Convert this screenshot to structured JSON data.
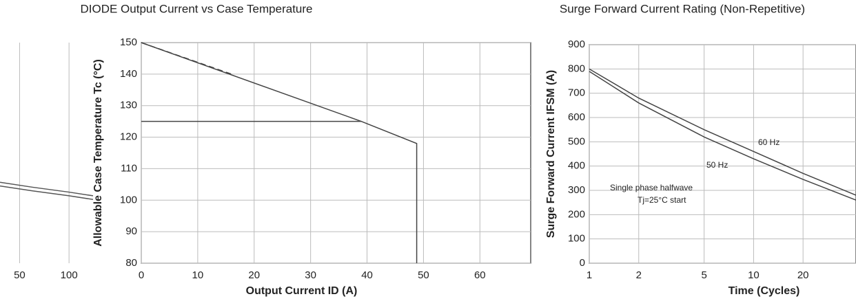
{
  "chart_data": [
    {
      "type": "line",
      "xscale": "log",
      "xlim": [
        38,
        140
      ],
      "ylim": [
        0,
        900
      ],
      "xticks": [
        50,
        100
      ],
      "grid": true,
      "series": [
        {
          "color": "#555",
          "x": [
            38,
            60,
            100,
            140
          ],
          "values": [
            330,
            310,
            290,
            275
          ]
        },
        {
          "color": "#555",
          "x": [
            38,
            60,
            100,
            140
          ],
          "values": [
            315,
            295,
            275,
            260
          ]
        }
      ]
    },
    {
      "type": "line",
      "title": "DIODE Output Current vs Case Temperature",
      "xlabel": "Output Current ID (A)",
      "ylabel": "Allowable Case Temperature Tc (°C)",
      "xlim": [
        0,
        69
      ],
      "ylim": [
        80,
        150
      ],
      "xticks": [
        0,
        10,
        20,
        30,
        40,
        50,
        60
      ],
      "yticks": [
        80,
        90,
        100,
        110,
        120,
        130,
        140,
        150
      ],
      "grid": true,
      "series": [
        {
          "color": "#444",
          "x": [
            0,
            39,
            48.8,
            48.8
          ],
          "values": [
            150,
            125,
            118,
            80
          ]
        },
        {
          "color": "#444",
          "x": [
            0,
            39
          ],
          "values": [
            125,
            125
          ]
        },
        {
          "color": "#444",
          "dash": true,
          "x": [
            0,
            16
          ],
          "values": [
            150,
            140
          ]
        }
      ]
    },
    {
      "type": "line",
      "title": "Surge Forward Current Rating (Non-Repetitive)",
      "xlabel": "Time (Cycles)",
      "ylabel": "Surge Forward Current IFSM (A)",
      "xscale": "log",
      "xlim": [
        1,
        42
      ],
      "ylim": [
        0,
        900
      ],
      "xticks": [
        1,
        2,
        5,
        10,
        20
      ],
      "yticks": [
        0,
        100,
        200,
        300,
        400,
        500,
        600,
        700,
        800,
        900
      ],
      "grid": true,
      "annotations": [
        "60 Hz",
        "50 Hz",
        "Single phase halfwave",
        "Tj=25°C start"
      ],
      "series": [
        {
          "color": "#444",
          "x": [
            1,
            2,
            5,
            10,
            20,
            42
          ],
          "values": [
            800,
            680,
            550,
            460,
            370,
            280
          ]
        },
        {
          "color": "#444",
          "x": [
            1,
            2,
            5,
            10,
            20,
            42
          ],
          "values": [
            790,
            660,
            520,
            430,
            345,
            260
          ]
        }
      ]
    }
  ]
}
